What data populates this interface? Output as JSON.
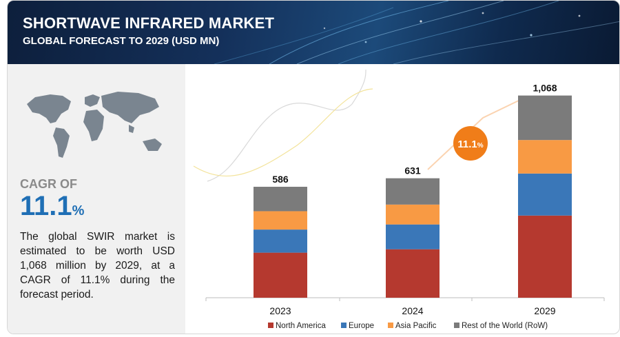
{
  "header": {
    "title": "SHORTWAVE INFRARED MARKET",
    "subtitle": "GLOBAL FORECAST TO 2029 (USD MN)"
  },
  "left_panel": {
    "cagr_label": "CAGR OF",
    "cagr_value": "11.1",
    "cagr_unit": "%",
    "description": "The global SWIR market is estimated to be worth USD 1,068 million by 2029, at a CAGR of 11.1% during the forecast period."
  },
  "callout": {
    "value": "11.1",
    "unit": "%"
  },
  "colors": {
    "north_america": "#b5392f",
    "europe": "#3a77b8",
    "asia_pacific": "#f89a44",
    "row": "#7b7b7b",
    "callout": "#f07d19",
    "accent_blue": "#1f6fb5"
  },
  "chart_data": {
    "type": "bar",
    "stacked": true,
    "categories": [
      "2023",
      "2024",
      "2029"
    ],
    "totals": [
      "586",
      "631",
      "1,068"
    ],
    "total_values": [
      586,
      631,
      1068
    ],
    "series": [
      {
        "name": "North America",
        "values": [
          238,
          256,
          434
        ]
      },
      {
        "name": "Europe",
        "values": [
          122,
          131,
          222
        ]
      },
      {
        "name": "Asia Pacific",
        "values": [
          97,
          105,
          177
        ]
      },
      {
        "name": "Rest of the World (RoW)",
        "values": [
          129,
          139,
          235
        ]
      }
    ],
    "legend_position": "bottom",
    "grid": false
  }
}
